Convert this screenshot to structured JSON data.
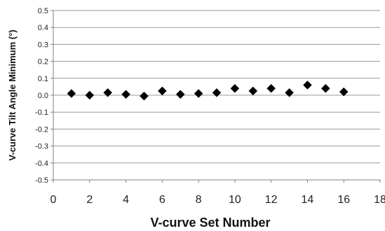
{
  "chart_data": {
    "type": "scatter",
    "xlabel": "V-curve Set Number",
    "ylabel": "V-curve Tilt Angle Minimum  (°)",
    "xlim": [
      0,
      18
    ],
    "ylim": [
      -0.5,
      0.5
    ],
    "xticks": [
      "0",
      "2",
      "4",
      "6",
      "8",
      "10",
      "12",
      "14",
      "16",
      "18"
    ],
    "yticks": [
      "0.5",
      "0.4",
      "0.3",
      "0.2",
      "0.1",
      "0.0",
      "-0.1",
      "-0.2",
      "-0.3",
      "-0.4",
      "-0.5"
    ],
    "grid": "horizontal",
    "marker": "diamond",
    "marker_color": "#000000",
    "points": [
      {
        "x": 1,
        "y": 0.01
      },
      {
        "x": 2,
        "y": 0.0
      },
      {
        "x": 3,
        "y": 0.015
      },
      {
        "x": 4,
        "y": 0.005
      },
      {
        "x": 5,
        "y": -0.005
      },
      {
        "x": 6,
        "y": 0.025
      },
      {
        "x": 7,
        "y": 0.005
      },
      {
        "x": 8,
        "y": 0.01
      },
      {
        "x": 9,
        "y": 0.015
      },
      {
        "x": 10,
        "y": 0.04
      },
      {
        "x": 11,
        "y": 0.025
      },
      {
        "x": 12,
        "y": 0.04
      },
      {
        "x": 13,
        "y": 0.015
      },
      {
        "x": 14,
        "y": 0.06
      },
      {
        "x": 15,
        "y": 0.04
      },
      {
        "x": 16,
        "y": 0.02
      }
    ]
  }
}
